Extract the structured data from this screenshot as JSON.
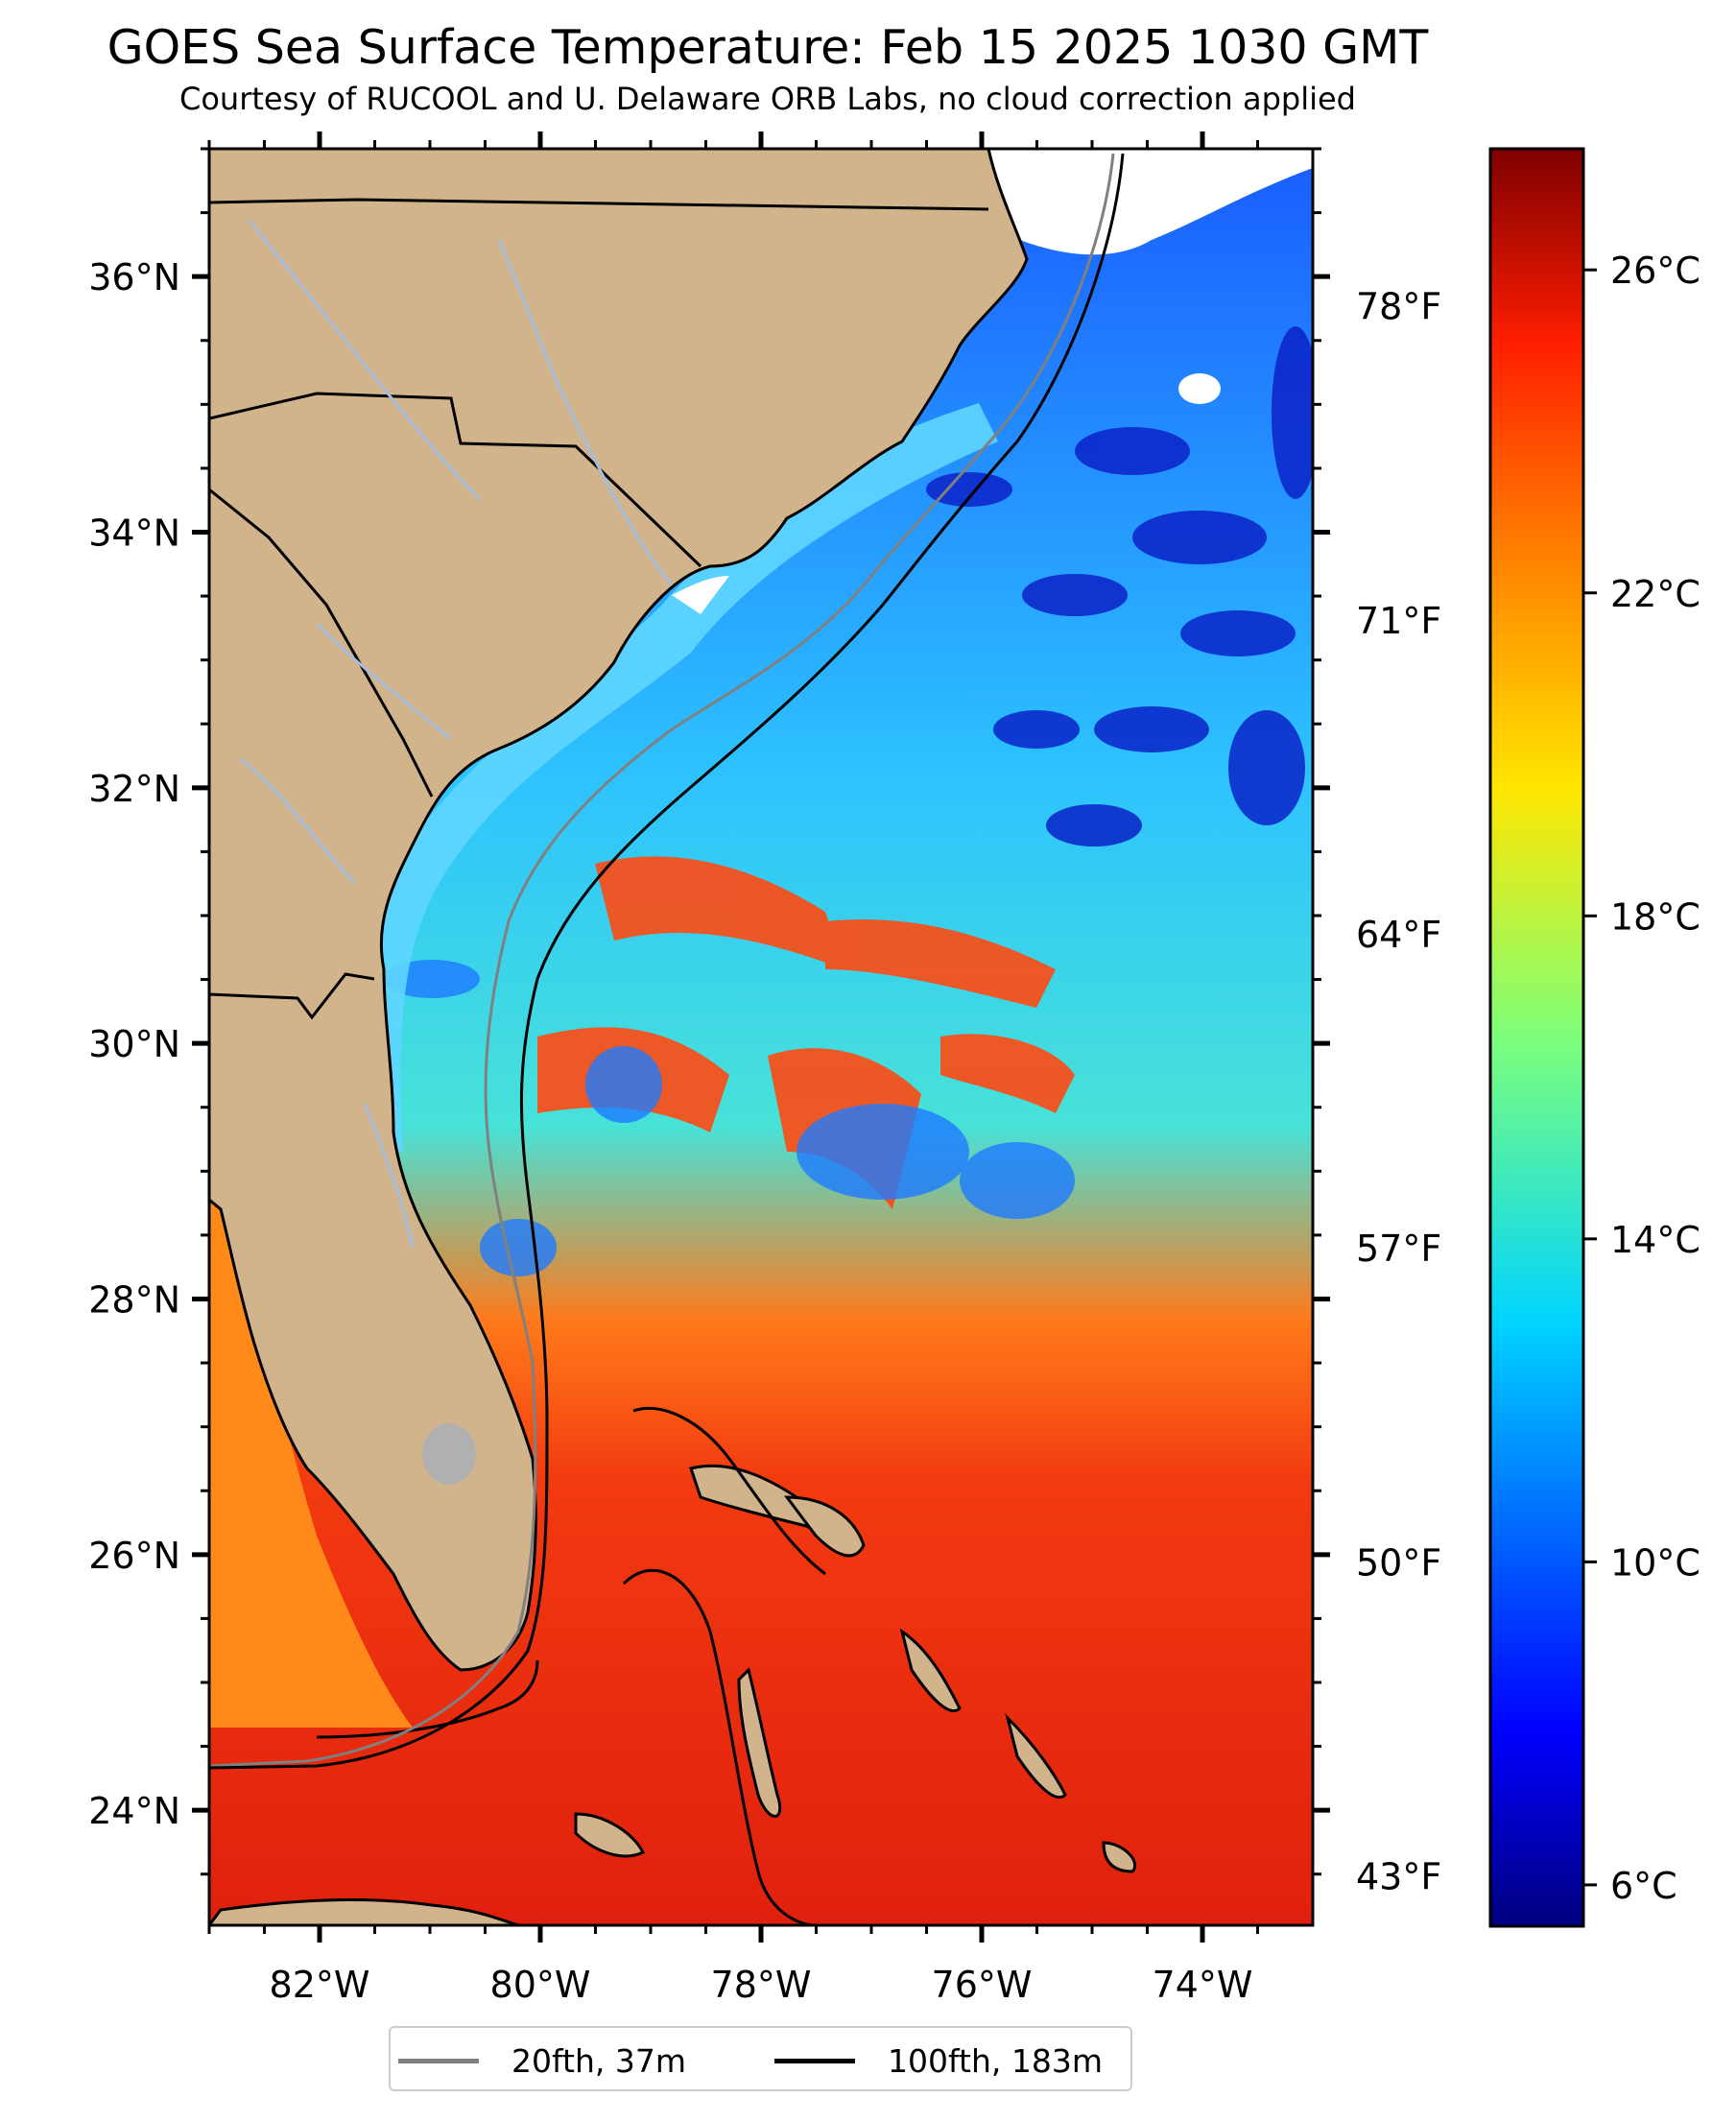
{
  "title": "GOES Sea Surface Temperature: Feb 15 2025 1030 GMT",
  "subtitle": "Courtesy of RUCOOL and U. Delaware ORB Labs, no cloud correction applied",
  "colors": {
    "land": "#d2b48c",
    "border": "#000000",
    "river": "#a6bddb",
    "contour_20fth": "#808080",
    "contour_100fth": "#000000",
    "cloud": "#ffffff"
  },
  "map": {
    "lon_range": [
      -83,
      -73
    ],
    "lat_range": [
      23.1,
      37.0
    ],
    "lon_ticks": [
      "82°W",
      "80°W",
      "78°W",
      "76°W",
      "74°W"
    ],
    "lat_ticks": [
      "24°N",
      "26°N",
      "28°N",
      "30°N",
      "32°N",
      "34°N",
      "36°N"
    ],
    "fahrenheit_ticks": [
      "43°F",
      "50°F",
      "57°F",
      "64°F",
      "71°F",
      "78°F"
    ],
    "fahrenheit_values": [
      43,
      50,
      57,
      64,
      71,
      78
    ]
  },
  "colorbar": {
    "range_c": [
      5.5,
      27.5
    ],
    "labels": [
      "6°C",
      "10°C",
      "14°C",
      "18°C",
      "22°C",
      "26°C"
    ],
    "values": [
      6,
      10,
      14,
      18,
      22,
      26
    ],
    "colormap": "jet"
  },
  "legend": {
    "items": [
      {
        "label": "20fth, 37m",
        "color": "#808080"
      },
      {
        "label": "100fth, 183m",
        "color": "#000000"
      }
    ]
  }
}
